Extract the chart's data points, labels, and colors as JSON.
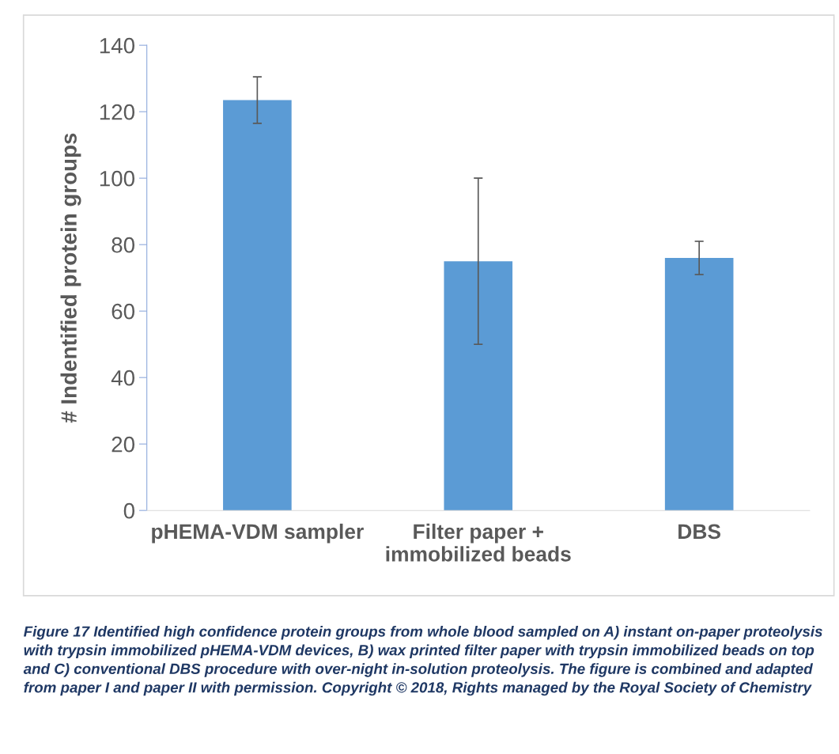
{
  "chart_data": {
    "type": "bar",
    "ylabel": "# Indentified protein groups",
    "categories": [
      "pHEMA-VDM sampler",
      "Filter paper +\nimmobilized beads",
      "DBS"
    ],
    "values": [
      123.5,
      75,
      76
    ],
    "errors": [
      7,
      25,
      5
    ],
    "color": "#5b9bd5",
    "ylim": [
      0,
      140
    ],
    "yticks": [
      0,
      20,
      40,
      60,
      80,
      100,
      120,
      140
    ],
    "grid": false,
    "legend": false,
    "annotations": [
      "Figure 17 Identified high confidence protein groups from whole blood sampled on A) instant on-paper proteolysis with trypsin immobilized pHEMA-VDM devices, B) wax printed filter paper with trypsin immobilized beads on top and C) conventional DBS procedure with over-night in-solution proteolysis. The figure is combined and adapted from paper I and paper II with permission. Copyright © 2018, Rights managed by the Royal Society of Chemistry"
    ]
  }
}
